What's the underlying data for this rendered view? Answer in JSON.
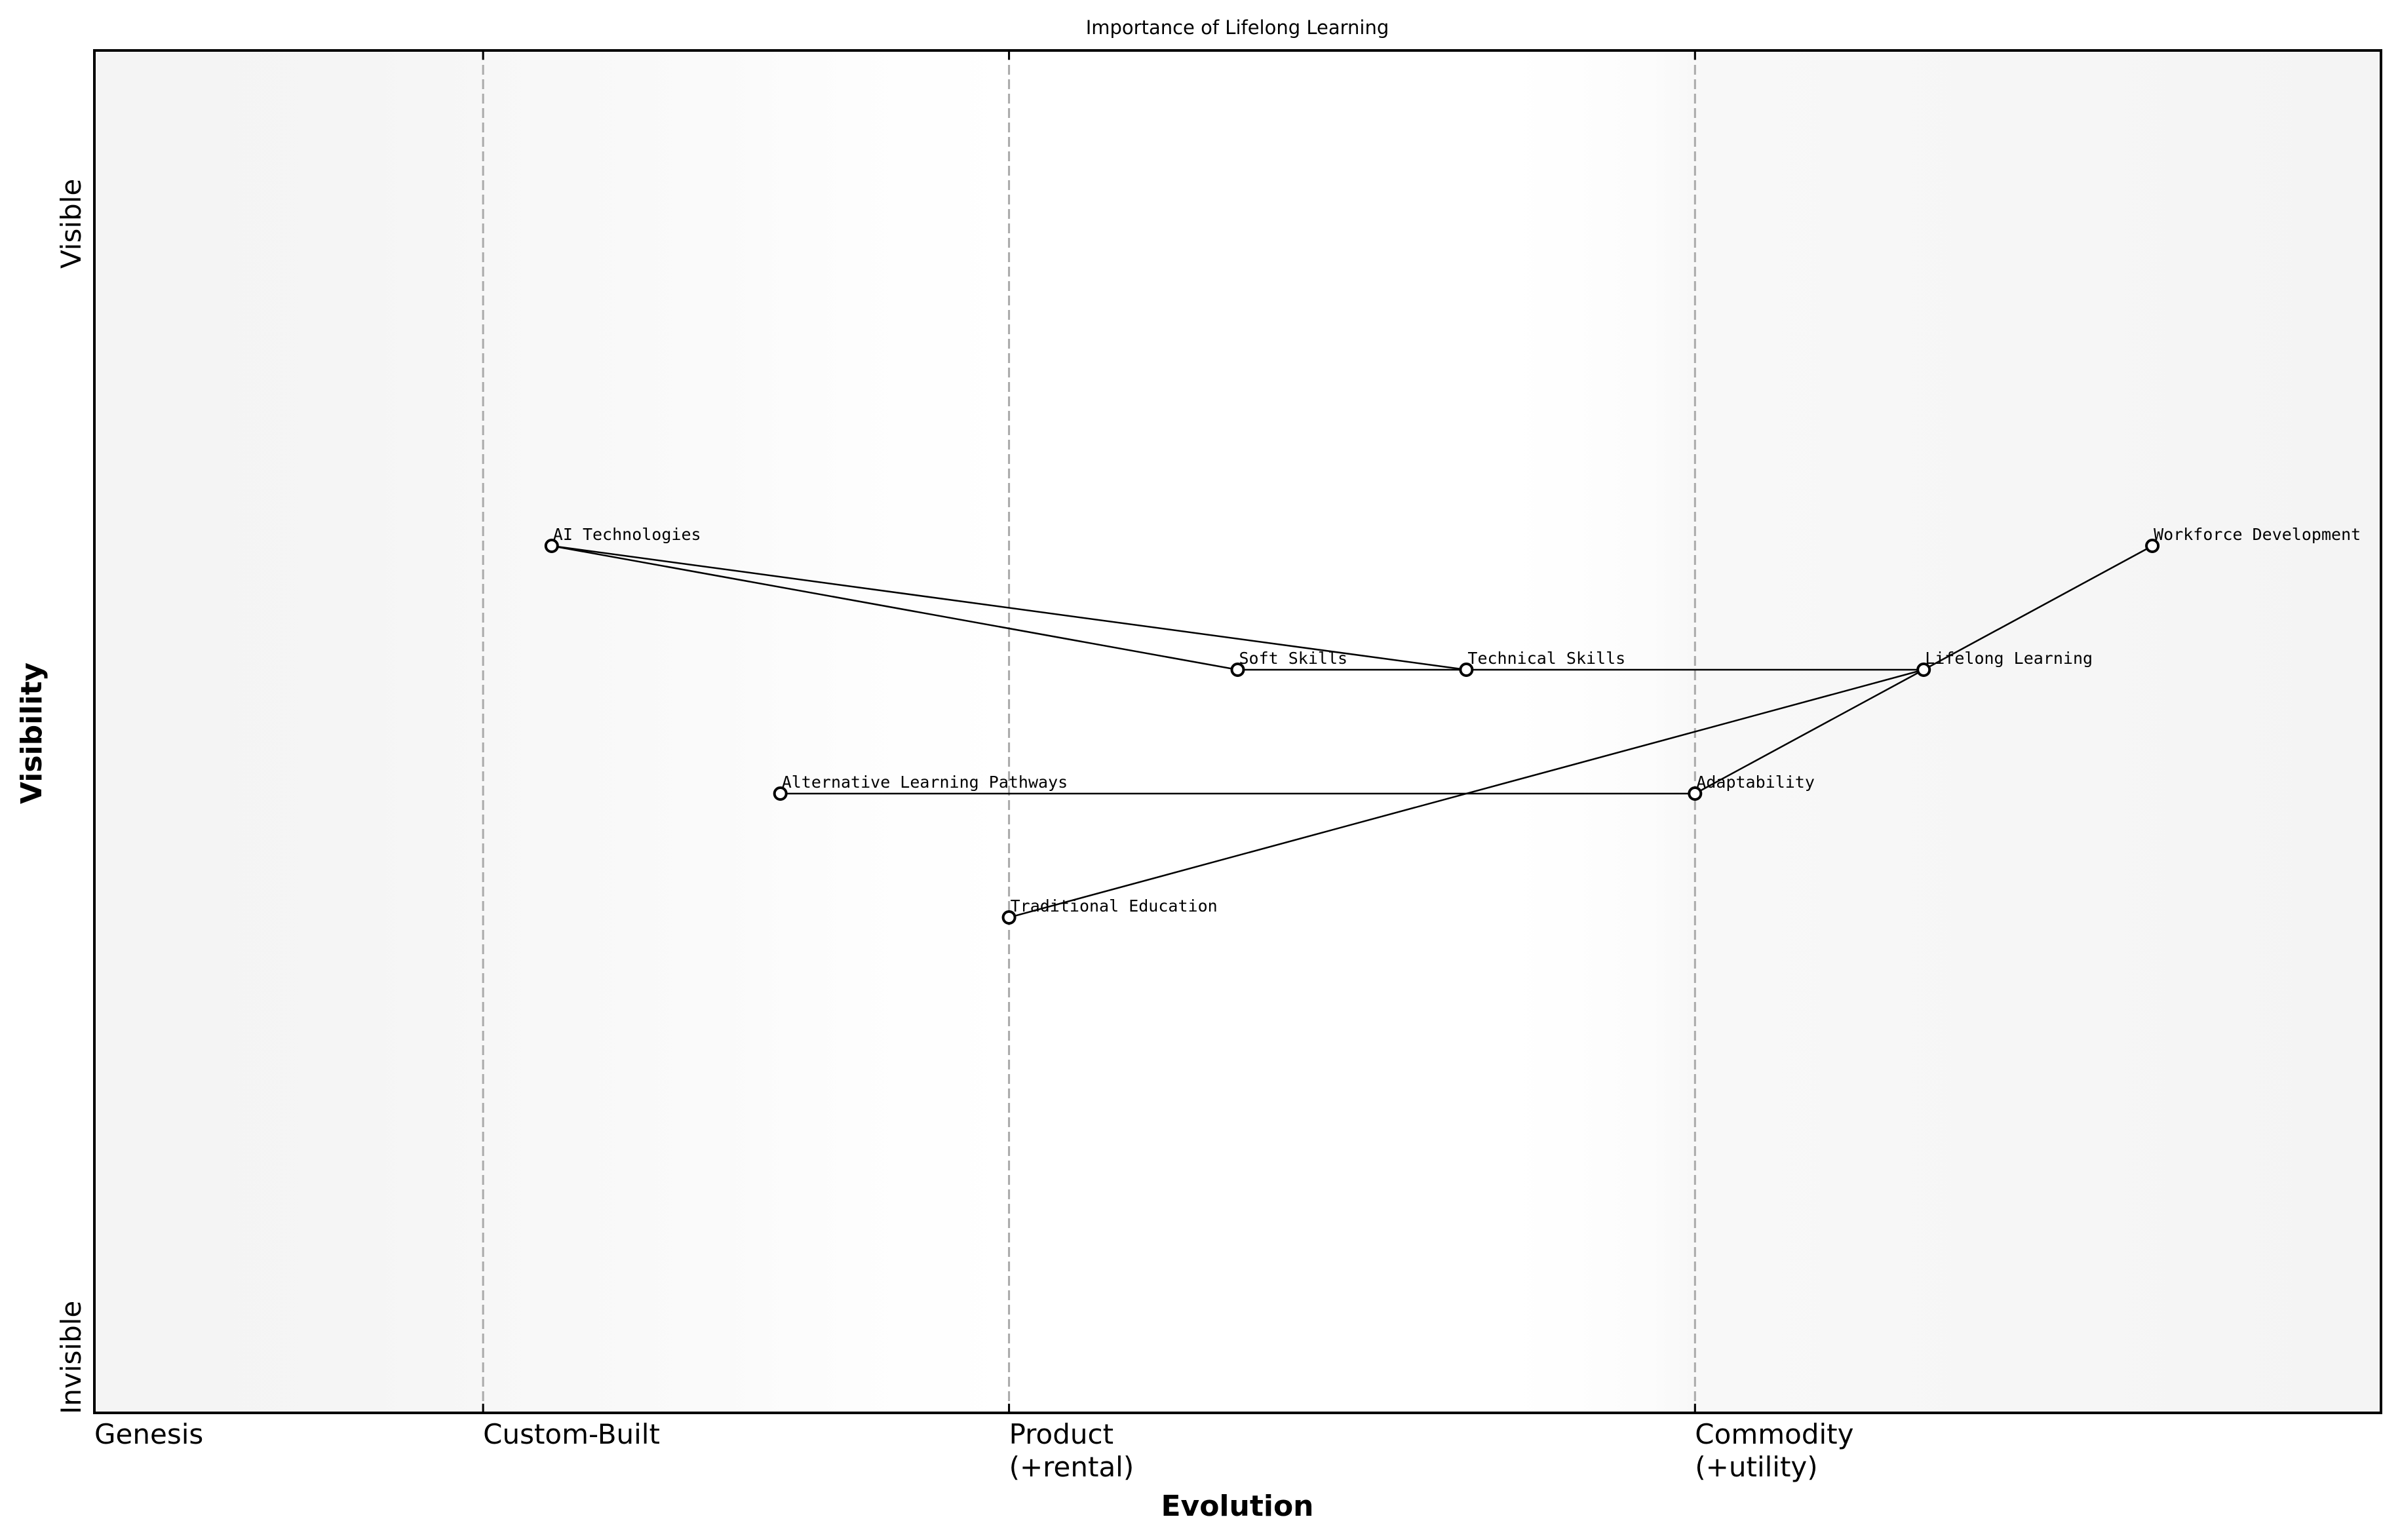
{
  "chart_data": {
    "type": "wardley-map",
    "title": "Importance of Lifelong Learning",
    "xlabel": "Evolution",
    "ylabel": "Visibility",
    "xlim": [
      0,
      1
    ],
    "ylim": [
      -0.05,
      1.05
    ],
    "grid": false,
    "legend": null,
    "y_annotations": [
      {
        "label": "Visible",
        "position": "top"
      },
      {
        "label": "Invisible",
        "position": "bottom"
      }
    ],
    "stages": [
      {
        "label": "Genesis",
        "x": 0.0,
        "line2": ""
      },
      {
        "label": "Custom-Built",
        "x": 0.17,
        "line2": ""
      },
      {
        "label": "Product",
        "x": 0.4,
        "line2": "(+rental)"
      },
      {
        "label": "Commodity",
        "x": 0.7,
        "line2": "(+utility)"
      }
    ],
    "nodes": [
      {
        "id": "ai",
        "label": "AI Technologies",
        "evolution": 0.2,
        "visibility": 0.65
      },
      {
        "id": "soft",
        "label": "Soft Skills",
        "evolution": 0.5,
        "visibility": 0.55
      },
      {
        "id": "tech",
        "label": "Technical Skills",
        "evolution": 0.6,
        "visibility": 0.55
      },
      {
        "id": "lifelong",
        "label": "Lifelong Learning",
        "evolution": 0.8,
        "visibility": 0.55
      },
      {
        "id": "workforce",
        "label": "Workforce Development",
        "evolution": 0.9,
        "visibility": 0.65
      },
      {
        "id": "alp",
        "label": "Alternative Learning Pathways",
        "evolution": 0.3,
        "visibility": 0.45
      },
      {
        "id": "adapt",
        "label": "Adaptability",
        "evolution": 0.7,
        "visibility": 0.45
      },
      {
        "id": "trad",
        "label": "Traditional Education",
        "evolution": 0.4,
        "visibility": 0.35
      }
    ],
    "edges": [
      [
        "ai",
        "soft"
      ],
      [
        "ai",
        "tech"
      ],
      [
        "soft",
        "tech"
      ],
      [
        "tech",
        "lifelong"
      ],
      [
        "lifelong",
        "workforce"
      ],
      [
        "lifelong",
        "adapt"
      ],
      [
        "trad",
        "lifelong"
      ],
      [
        "alp",
        "adapt"
      ]
    ],
    "colors": {
      "frame": "#000000",
      "stage_line": "#aaaaaa",
      "edge": "#000000",
      "node_fill": "#ffffff",
      "node_stroke": "#000000",
      "bg_edge": "#f4f4f4",
      "bg_center": "#ffffff"
    }
  }
}
